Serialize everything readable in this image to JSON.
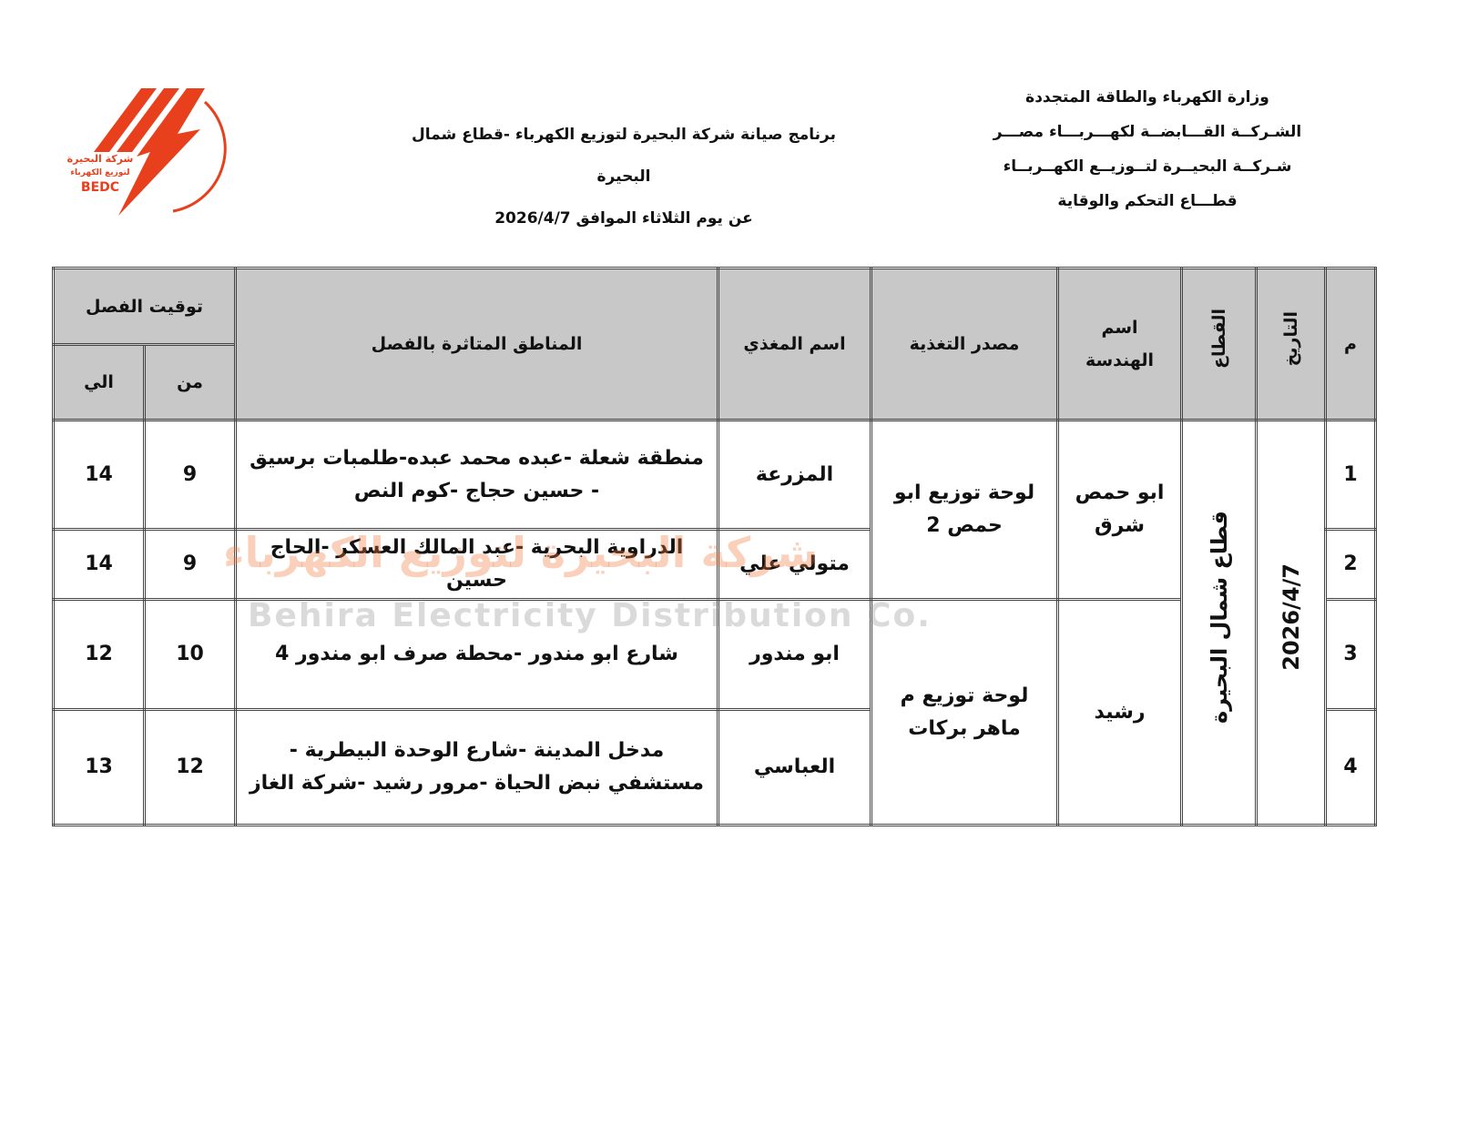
{
  "header_right": [
    "وزارة الكهرباء والطاقة المتجددة",
    "الشـركــة القـــابضــة لكهـــربـــاء مصـــر",
    "شـركــة البحيــرة لتــوزيــع الكهــربــاء",
    "قطـــاع التحكم والوقاية"
  ],
  "header_center": {
    "title": "برنامج صيانة شركة البحيرة لتوزيع الكهرباء -قطاع شمال البحيرة",
    "date_line": "عن يوم الثلاثاء  الموافق  2026/4/7"
  },
  "logo": {
    "name_line1": "شركة البحيرة",
    "name_line2": "لتوزيع الكهرباء",
    "abbr": "BEDC",
    "ring_text": "الشركة القابضة لكهرباء مصر",
    "color": "#e8401c"
  },
  "watermark": {
    "arabic": "شركة البحيرة لتوزيع الكهرباء",
    "english": "Behira Electricity Distribution Co."
  },
  "table": {
    "headers": {
      "num": "م",
      "date": "التاريخ",
      "sector": "القطاع",
      "engineering": "اسم الهندسة",
      "source": "مصدر التغذية",
      "feeder": "اسم المغذي",
      "areas": "المناطق المتاثرة بالفصل",
      "timing": "توقيت الفصل",
      "from": "من",
      "to": "الي"
    },
    "date": "2026/4/7",
    "sector": "قطاع شمال البحيرة",
    "engineering": [
      "ابو حمص شرق",
      "رشيد"
    ],
    "sources": [
      "لوحة توزيع ابو حمص 2",
      "لوحة توزيع م ماهر بركات"
    ],
    "rows": [
      {
        "num": "1",
        "feeder": "المزرعة",
        "areas": "منطقة شعلة -عبده محمد عبده-طلمبات برسيق - حسين حجاج -كوم النص",
        "from": "9",
        "to": "14"
      },
      {
        "num": "2",
        "feeder": "متولي علي",
        "areas": "الدراوية البحرية -عبد المالك العسكر -الحاج حسين",
        "from": "9",
        "to": "14"
      },
      {
        "num": "3",
        "feeder": "ابو مندور",
        "areas": "شارع ابو مندور -محطة صرف ابو مندور 4",
        "from": "10",
        "to": "12"
      },
      {
        "num": "4",
        "feeder": "العباسي",
        "areas": "مدخل المدينة -شارع الوحدة البيطرية - مستشفي نبض الحياة -مرور رشيد -شركة الغاز",
        "from": "12",
        "to": "13"
      }
    ]
  }
}
